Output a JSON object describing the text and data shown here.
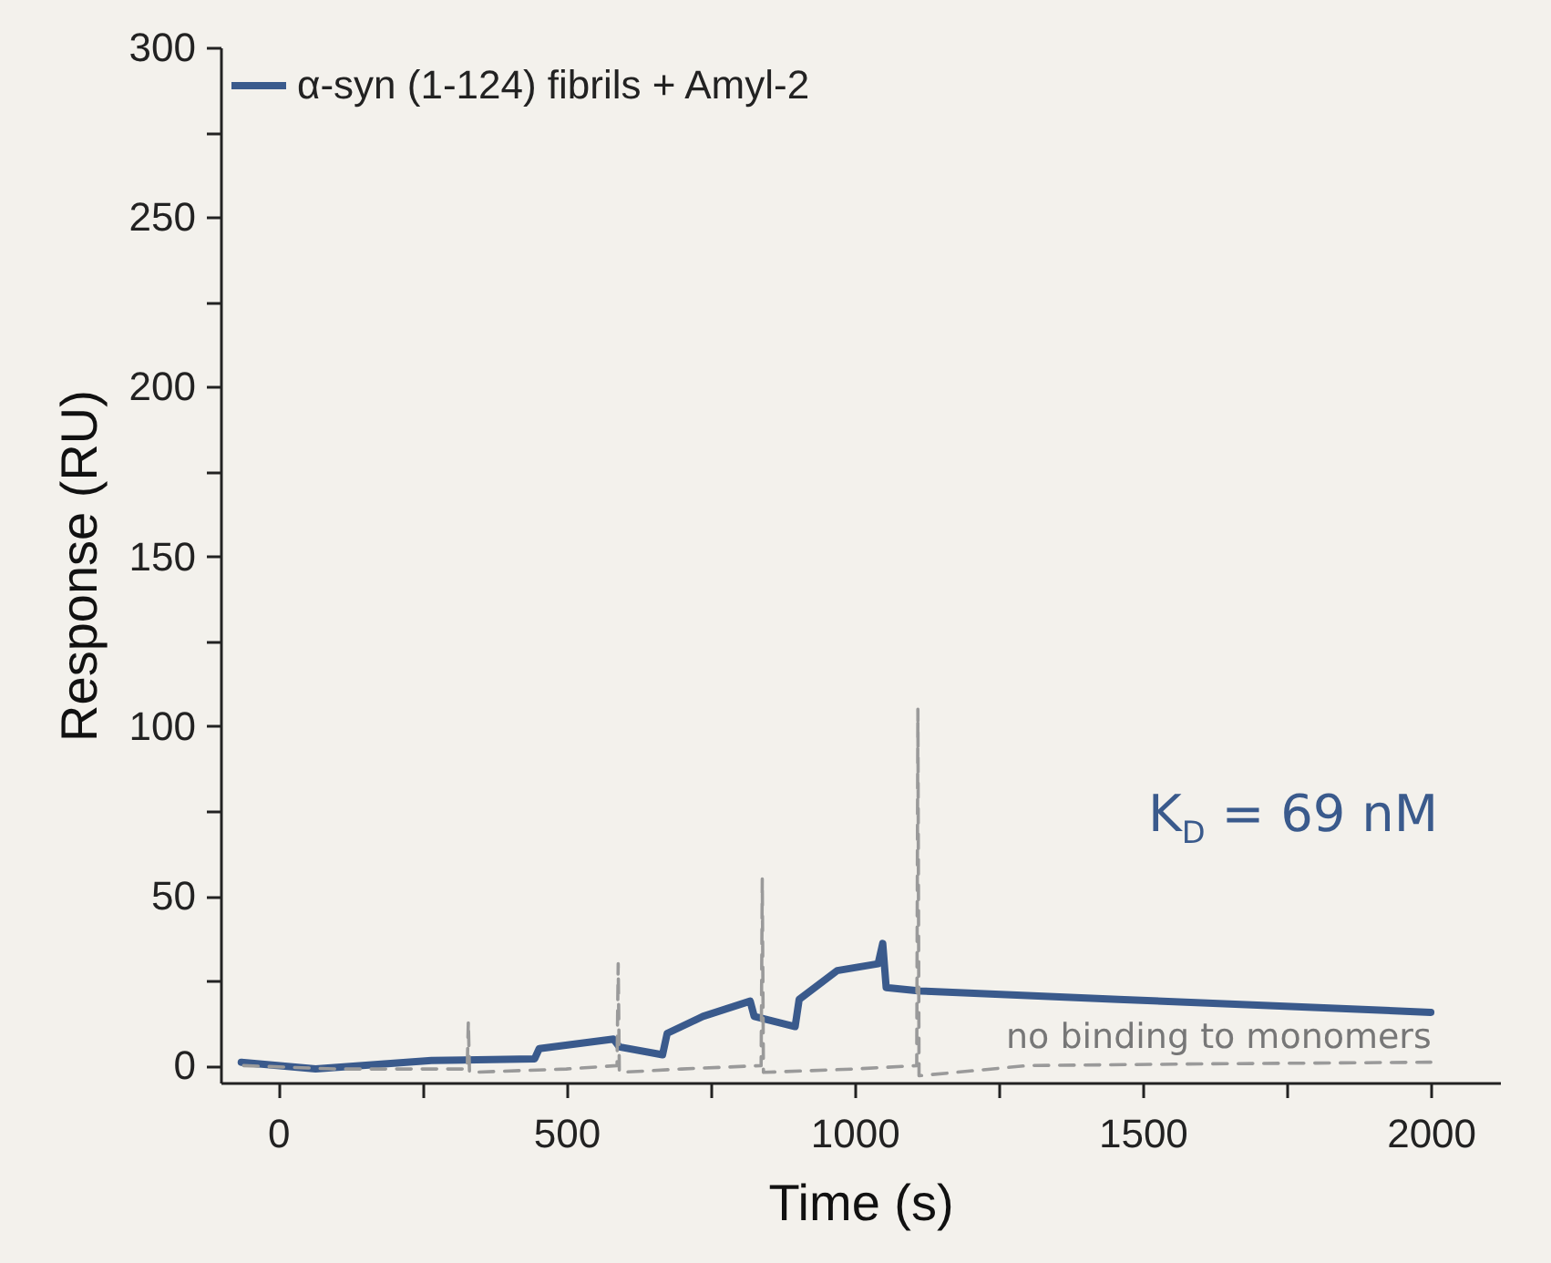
{
  "chart_data": {
    "type": "line",
    "xlabel": "Time (s)",
    "ylabel": "Response (RU)",
    "xlim": [
      -100,
      2120
    ],
    "xticks": [
      0,
      {
        "value": 250,
        "label": null
      },
      500,
      {
        "value": 750,
        "label": null
      },
      1000,
      {
        "value": 1250,
        "label": null
      },
      1500,
      {
        "value": 1750,
        "label": null
      },
      2000
    ],
    "ylim": [
      -5,
      300
    ],
    "yticks": [
      0,
      {
        "value": 25,
        "label": null
      },
      50,
      {
        "value": 75,
        "label": null
      },
      100,
      {
        "value": 125,
        "label": null
      },
      150,
      {
        "value": 175,
        "label": null
      },
      200,
      {
        "value": 225,
        "label": null
      },
      250,
      {
        "value": 275,
        "label": null
      },
      300
    ],
    "grid": false,
    "legend": "top left",
    "annotations": [
      "K$_{D}$ = 69 nM",
      "no binding to monomers"
    ],
    "series": [
      {
        "name": "α-syn (1-124) fibrils + Amyl-2",
        "color": "#3a5a8c",
        "line_style": "solid",
        "x": [
          -64,
          65,
          266,
          445,
          453,
          582,
          592,
          667,
          675,
          737,
          819,
          826,
          897,
          904,
          970,
          1041,
          1049,
          1055,
          1114,
          1458,
          2000
        ],
        "values": [
          1,
          -1,
          1.5,
          2,
          5,
          7.8,
          5.5,
          3.2,
          9.5,
          14.5,
          19,
          14.5,
          11.5,
          19.5,
          28,
          30,
          36,
          23,
          22,
          19.5,
          15.7
        ]
      },
      {
        "color": "#9a9a9a",
        "line_style": "dashed",
        "x": [
          -60,
          100,
          300,
          328,
          330,
          332,
          500,
          588,
          590,
          592,
          700,
          838,
          840,
          842,
          1000,
          1108,
          1110,
          1112,
          1300,
          1600,
          2000
        ],
        "values": [
          0,
          -1,
          -1,
          -1,
          13,
          -2,
          -1,
          0,
          30,
          -2,
          -1,
          0,
          55,
          -2,
          -1,
          0,
          105,
          -3,
          0,
          0.5,
          1
        ]
      }
    ]
  }
}
